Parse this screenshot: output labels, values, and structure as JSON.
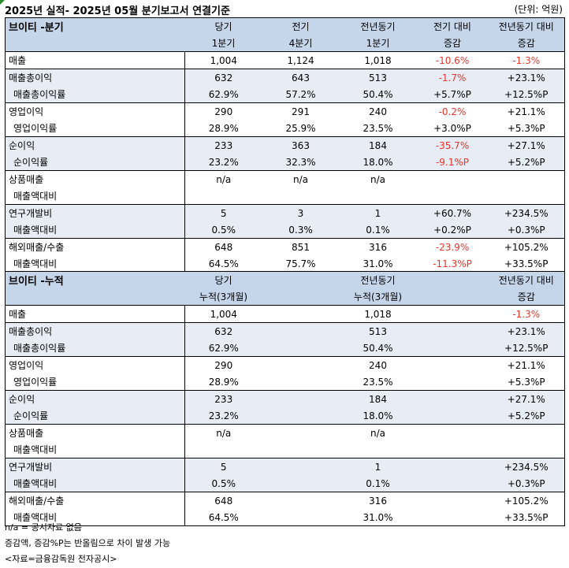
{
  "header": {
    "title": "2025년 실적- 2025년 05월 분기보고서 연결기준",
    "unit": "(단위: 억원)"
  },
  "quarter": {
    "cols": {
      "label": "브이티 -분기",
      "c1a": "당기",
      "c1b": "1분기",
      "c2a": "전기",
      "c2b": "4분기",
      "c3a": "전년동기",
      "c3b": "1분기",
      "c4a": "전기 대비",
      "c4b": "증감",
      "c5a": "전년동기 대비",
      "c5b": "증감"
    },
    "rows": [
      {
        "label": "매출",
        "v": [
          "1,004",
          "1,124",
          "1,018",
          "-10.6%",
          "-1.3%"
        ]
      },
      {
        "label": "매출총이익",
        "v": [
          "632",
          "643",
          "513",
          "-1.7%",
          "+23.1%"
        ]
      },
      {
        "label": "매출총이익률",
        "v": [
          "62.9%",
          "57.2%",
          "50.4%",
          "+5.7%P",
          "+12.5%P"
        ]
      },
      {
        "label": "영업이익",
        "v": [
          "290",
          "291",
          "240",
          "-0.2%",
          "+21.1%"
        ]
      },
      {
        "label": "영업이익률",
        "v": [
          "28.9%",
          "25.9%",
          "23.5%",
          "+3.0%P",
          "+5.3%P"
        ]
      },
      {
        "label": "순이익",
        "v": [
          "233",
          "363",
          "184",
          "-35.7%",
          "+27.1%"
        ]
      },
      {
        "label": "순이익률",
        "v": [
          "23.2%",
          "32.3%",
          "18.0%",
          "-9.1%P",
          "+5.2%P"
        ]
      },
      {
        "label": "상품매출",
        "v": [
          "n/a",
          "n/a",
          "n/a",
          "",
          ""
        ]
      },
      {
        "label": "매출액대비",
        "v": [
          "",
          "",
          "",
          "",
          ""
        ]
      },
      {
        "label": "연구개발비",
        "v": [
          "5",
          "3",
          "1",
          "+60.7%",
          "+234.5%"
        ]
      },
      {
        "label": "매출액대비",
        "v": [
          "0.5%",
          "0.3%",
          "0.1%",
          "+0.2%P",
          "+0.3%P"
        ]
      },
      {
        "label": "해외매출/수출",
        "v": [
          "648",
          "851",
          "316",
          "-23.9%",
          "+105.2%"
        ]
      },
      {
        "label": "매출액대비",
        "v": [
          "64.5%",
          "75.7%",
          "31.0%",
          "-11.3%P",
          "+33.5%P"
        ]
      }
    ]
  },
  "cumulative": {
    "cols": {
      "label": "브이티 -누적",
      "c1a": "당기",
      "c1b": "누적(3개월)",
      "c3a": "전년동기",
      "c3b": "누적(3개월)",
      "c5a": "전년동기 대비",
      "c5b": "증감"
    },
    "rows": [
      {
        "label": "매출",
        "v": [
          "1,004",
          "1,018",
          "-1.3%"
        ]
      },
      {
        "label": "매출총이익",
        "v": [
          "632",
          "513",
          "+23.1%"
        ]
      },
      {
        "label": "매출총이익률",
        "v": [
          "62.9%",
          "50.4%",
          "+12.5%P"
        ]
      },
      {
        "label": "영업이익",
        "v": [
          "290",
          "240",
          "+21.1%"
        ]
      },
      {
        "label": "영업이익률",
        "v": [
          "28.9%",
          "23.5%",
          "+5.3%P"
        ]
      },
      {
        "label": "순이익",
        "v": [
          "233",
          "184",
          "+27.1%"
        ]
      },
      {
        "label": "순이익률",
        "v": [
          "23.2%",
          "18.0%",
          "+5.2%P"
        ]
      },
      {
        "label": "상품매출",
        "v": [
          "n/a",
          "n/a",
          ""
        ]
      },
      {
        "label": "매출액대비",
        "v": [
          "",
          "",
          ""
        ]
      },
      {
        "label": "연구개발비",
        "v": [
          "5",
          "1",
          "+234.5%"
        ]
      },
      {
        "label": "매출액대비",
        "v": [
          "0.5%",
          "0.1%",
          "+0.3%P"
        ]
      },
      {
        "label": "해외매출/수출",
        "v": [
          "648",
          "316",
          "+105.2%"
        ]
      },
      {
        "label": "매출액대비",
        "v": [
          "64.5%",
          "31.0%",
          "+33.5%P"
        ]
      }
    ]
  },
  "footer": {
    "note1": "n/a = 공시자료 없음",
    "note2": "증감액, 증감%P는 반올림으로 차이 발생 가능",
    "note3": "<자료=금융감독원 전자공시>"
  },
  "colors": {
    "header_bg": "#c5d5ea",
    "shade_bg": "#e8ecf4",
    "negative": "#e8342a"
  }
}
